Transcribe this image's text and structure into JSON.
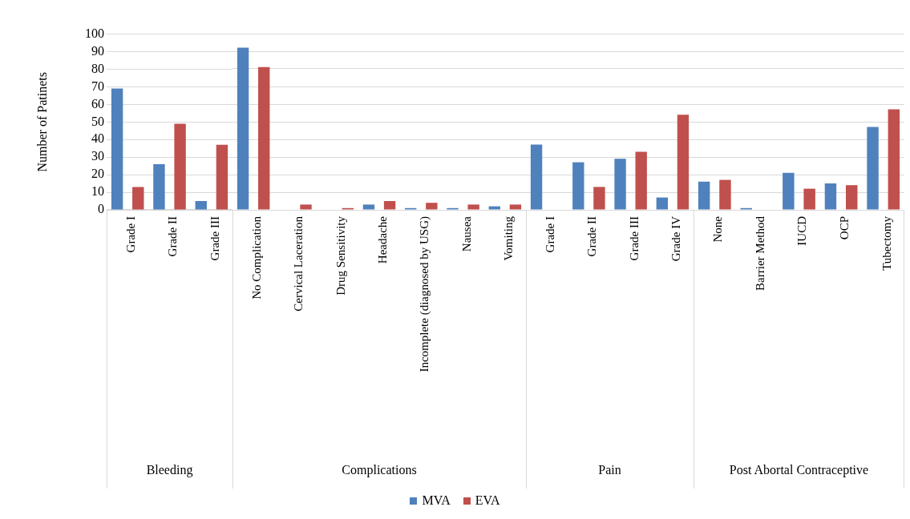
{
  "chart_data": [
    {
      "type": "bar",
      "xlabel": "Bleeding",
      "ylabel": "Number of Patinets",
      "categories": [
        "Grade I",
        "Grade II",
        "Grade III"
      ],
      "series": [
        {
          "name": "MVA",
          "color": "#4f81bd",
          "values": [
            69,
            26,
            5
          ]
        },
        {
          "name": "EVA",
          "color": "#c0504d",
          "values": [
            13,
            49,
            37
          ]
        }
      ],
      "ylim": [
        0,
        100
      ],
      "yticks": [
        0,
        10,
        20,
        30,
        40,
        50,
        60,
        70,
        80,
        90,
        100
      ],
      "grid": "y",
      "legend": "bottom"
    },
    {
      "type": "bar",
      "xlabel": "Complications",
      "categories": [
        "No Complication",
        "Cervical Laceration",
        "Drug Sensitivity",
        "Headache",
        "Incomplete (diagnosed by USG)",
        "Nausea",
        "Vomiting"
      ],
      "series": [
        {
          "color": "#4f81bd",
          "values": [
            92,
            0,
            0,
            3,
            1,
            1,
            2
          ]
        },
        {
          "color": "#c0504d",
          "values": [
            81,
            3,
            1,
            5,
            4,
            3,
            3
          ]
        }
      ],
      "ylim": [
        0,
        100
      ],
      "yticks": [
        0,
        10,
        20,
        30,
        40,
        50,
        60,
        70,
        80,
        90,
        100
      ],
      "grid": "y",
      "tick_labels": "x"
    },
    {
      "type": "bar",
      "xlabel": "Pain",
      "categories": [
        "Grade I",
        "Grade II",
        "Grade III",
        "Grade IV"
      ],
      "series": [
        {
          "color": "#4f81bd",
          "values": [
            37,
            27,
            29,
            7
          ]
        },
        {
          "color": "#c0504d",
          "values": [
            0,
            13,
            33,
            54
          ]
        }
      ],
      "ylim": [
        0,
        100
      ],
      "yticks": [
        0,
        10,
        20,
        30,
        40,
        50,
        60,
        70,
        80,
        90,
        100
      ],
      "grid": "y",
      "tick_labels": "x"
    },
    {
      "type": "bar",
      "xlabel": "Post Abortal Contraceptive",
      "categories": [
        "None",
        "Barrier Method",
        "IUCD",
        "OCP",
        "Tubectomy"
      ],
      "series": [
        {
          "color": "#4f81bd",
          "values": [
            16,
            1,
            21,
            15,
            47
          ]
        },
        {
          "color": "#c0504d",
          "values": [
            17,
            0,
            12,
            14,
            57
          ]
        }
      ],
      "ylim": [
        0,
        100
      ],
      "yticks": [
        0,
        10,
        20,
        30,
        40,
        50,
        60,
        70,
        80,
        90,
        100
      ],
      "grid": "y",
      "tick_labels": "x"
    }
  ]
}
